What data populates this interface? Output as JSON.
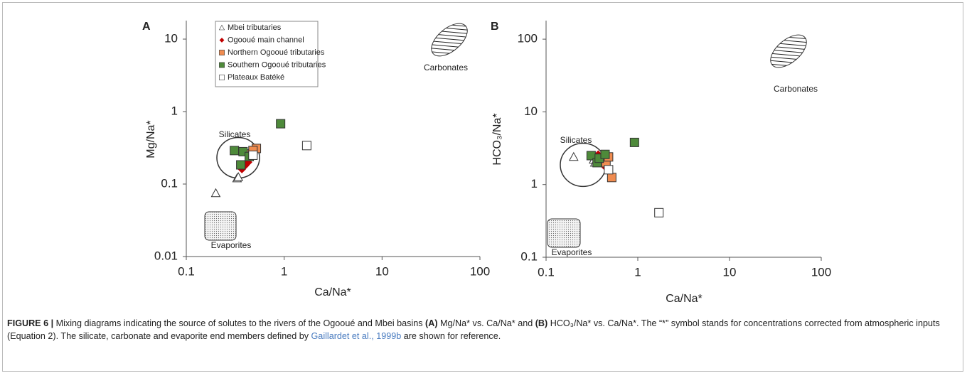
{
  "chart_data": [
    {
      "type": "scatter",
      "panel_label": "A",
      "x_label": "Ca/Na*",
      "y_label": "Mg/Na*",
      "log_x": true,
      "log_y": true,
      "xlim": [
        0.1,
        100
      ],
      "ylim": [
        0.01,
        18
      ],
      "xticks": [
        0.1,
        1,
        10,
        100
      ],
      "yticks": [
        0.01,
        0.1,
        1,
        10
      ],
      "legend": "upper left",
      "annotations": [
        "Silicates",
        "Carbonates",
        "Evaporites"
      ],
      "series": [
        {
          "name": "Mbei tributaries",
          "marker": "triangle",
          "color": "#ffffff",
          "x": [
            0.2,
            0.33,
            0.34
          ],
          "values": [
            0.075,
            0.12,
            0.125
          ]
        },
        {
          "name": "Ogooué main channel",
          "marker": "diamond",
          "color": "#c00000",
          "x": [
            0.4,
            0.43,
            0.37
          ],
          "values": [
            0.18,
            0.2,
            0.16
          ]
        },
        {
          "name": "Northern Ogooué tributaries",
          "marker": "square",
          "color": "#f08c50",
          "x": [
            0.45,
            0.52,
            0.48
          ],
          "values": [
            0.26,
            0.31,
            0.29
          ]
        },
        {
          "name": "Southern Ogooué tributaries",
          "marker": "square",
          "color": "#4e8a3a",
          "x": [
            0.31,
            0.36,
            0.38,
            0.44,
            0.92
          ],
          "values": [
            0.29,
            0.184,
            0.28,
            0.24,
            0.68
          ]
        },
        {
          "name": "Plateaux Batéké",
          "marker": "square",
          "color": "#ffffff",
          "x": [
            0.48,
            1.7
          ],
          "values": [
            0.25,
            0.34
          ]
        }
      ]
    },
    {
      "type": "scatter",
      "panel_label": "B",
      "x_label": "Ca/Na*",
      "y_label": "HCO₃/Na*",
      "log_x": true,
      "log_y": true,
      "xlim": [
        0.1,
        100
      ],
      "ylim": [
        0.1,
        180
      ],
      "xticks": [
        0.1,
        1,
        10,
        100
      ],
      "yticks": [
        0.1,
        1,
        10,
        100
      ],
      "annotations": [
        "Silicates",
        "Carbonates",
        "Evaporites"
      ],
      "series": [
        {
          "marker": "triangle",
          "color": "#ffffff",
          "x": [
            0.2,
            0.33,
            0.34
          ],
          "values": [
            2.4,
            2.2,
            2.0
          ]
        },
        {
          "marker": "diamond",
          "color": "#c00000",
          "x": [
            0.4,
            0.43,
            0.37
          ],
          "values": [
            2.0,
            1.8,
            2.6
          ]
        },
        {
          "marker": "square",
          "color": "#f08c50",
          "x": [
            0.45,
            0.52,
            0.48
          ],
          "values": [
            2.0,
            1.25,
            2.4
          ]
        },
        {
          "marker": "square",
          "color": "#4e8a3a",
          "x": [
            0.31,
            0.36,
            0.38,
            0.44,
            0.92
          ],
          "values": [
            2.5,
            2.0,
            2.3,
            2.6,
            3.8
          ]
        },
        {
          "marker": "square",
          "color": "#ffffff",
          "x": [
            0.48,
            1.7
          ],
          "values": [
            1.6,
            0.41
          ]
        }
      ]
    }
  ],
  "caption": [
    {
      "text": "FIGURE 6 |",
      "bold": true
    },
    {
      "text": " Mixing diagrams indicating the source of solutes to the rivers of the Ogooué and Mbei basins "
    },
    {
      "text": "(A)",
      "bold": true
    },
    {
      "text": " Mg/Na* vs. Ca/Na* and "
    },
    {
      "text": "(B)",
      "bold": true
    },
    {
      "text": " HCO₃/Na* vs. Ca/Na*. The “*” symbol stands for concentrations corrected from atmospheric inputs (Equation 2). The silicate, carbonate and evaporite end members defined by "
    },
    {
      "text": "Gaillardet et al., 1999b",
      "link": true
    },
    {
      "text": " are shown for reference."
    }
  ]
}
